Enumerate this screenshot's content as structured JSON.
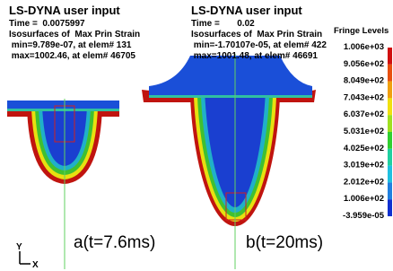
{
  "panels": [
    {
      "title": "LS-DYNA user input",
      "lines": [
        "Time =  0.0075997",
        "Isosurfaces of  Max Prin Strain",
        " min=9.789e-07, at elem# 131",
        " max=1002.46, at elem# 46705"
      ],
      "caption": "a(t=7.6ms)"
    },
    {
      "title": "LS-DYNA user input",
      "lines": [
        "Time =       0.02",
        "Isosurfaces of  Max Prin Strain",
        " min=-1.70107e-05, at elem# 422",
        " max=1001.48, at elem# 46691"
      ],
      "caption": "b(t=20ms)"
    }
  ],
  "fringe": {
    "title": "Fringe Levels",
    "levels": [
      "1.006e+03",
      "9.056e+02",
      "8.049e+02",
      "7.043e+02",
      "6.037e+02",
      "5.031e+02",
      "4.025e+02",
      "3.019e+02",
      "2.012e+02",
      "1.006e+02",
      "-3.959e-05"
    ]
  },
  "axes": {
    "y": "Y",
    "x": "X"
  }
}
